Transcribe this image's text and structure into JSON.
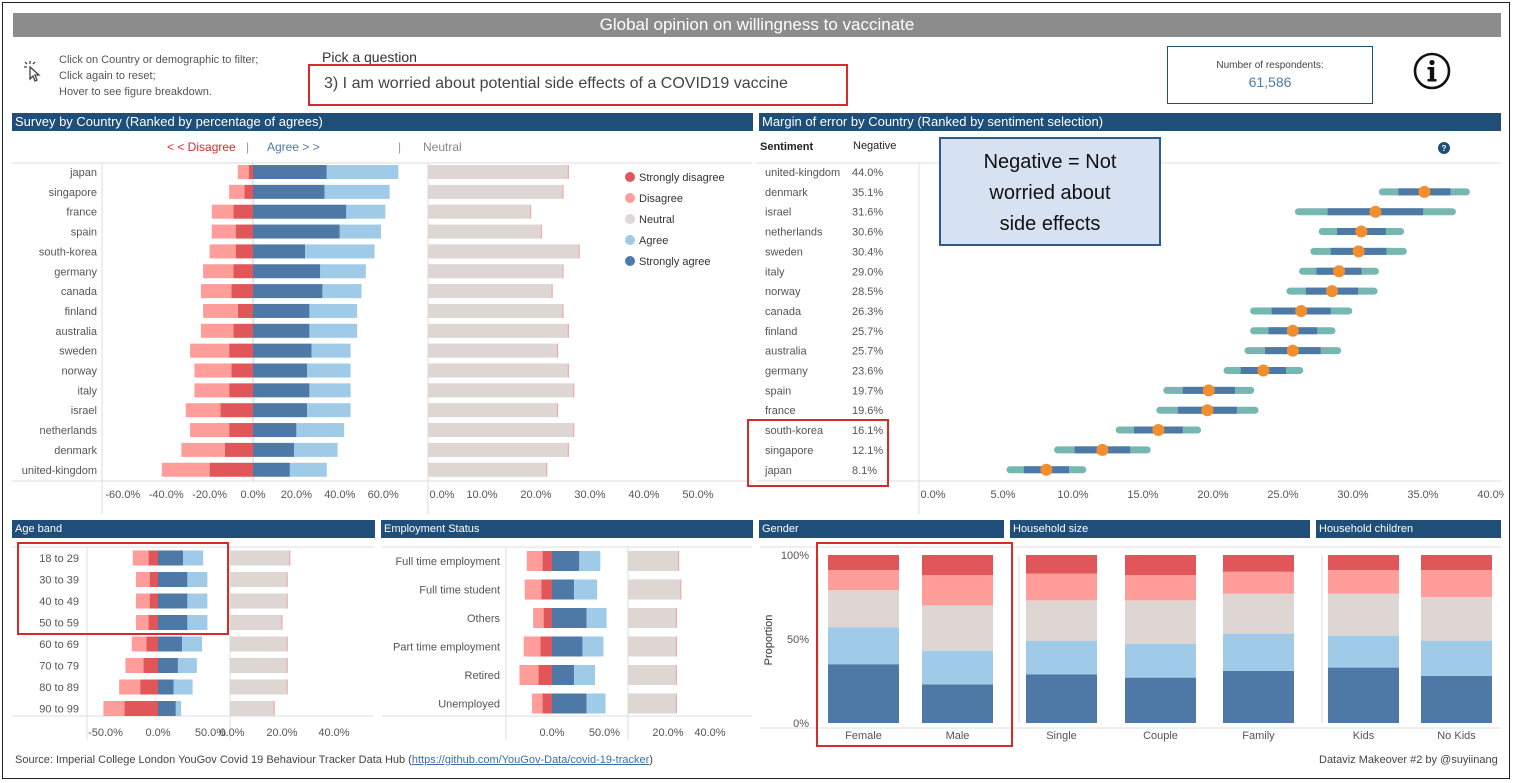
{
  "title": "Global opinion on willingness to vaccinate",
  "hints": [
    "Click on Country or demographic to filter;",
    "Click again to reset;",
    "Hover to see figure breakdown."
  ],
  "pick_label": "Pick a question",
  "question": "3) I am worried about potential side effects of a COVID19 vaccine",
  "respondents": {
    "label": "Number of respondents:",
    "value": "61,586"
  },
  "colors": {
    "strongly_disagree": "#e15759",
    "disagree": "#ff9d9a",
    "neutral": "#ddd6d3",
    "agree": "#a0cbe8",
    "strongly_agree": "#4e79a7",
    "header": "#1f4e79",
    "dot": "#f28e2b",
    "ci_outer": "#76b7b2"
  },
  "legend": [
    "Strongly disagree",
    "Disagree",
    "Neutral",
    "Agree",
    "Strongly agree"
  ],
  "survey": {
    "header": "Survey by Country (Ranked by percentage of agrees)",
    "disagree_label": "< < Disagree",
    "agree_label": "Agree > >",
    "neutral_label": "Neutral"
  },
  "margin": {
    "header": "Margin of error  by Country (Ranked by sentiment selection)",
    "sentiment_label": "Sentiment",
    "sentiment_value": "Negative",
    "annotation": [
      "Negative = Not",
      "worried about",
      "side effects"
    ]
  },
  "sections": {
    "age": "Age band",
    "employment": "Employment Status",
    "gender": "Gender",
    "household_size": "Household size",
    "household_children": "Household children"
  },
  "chart_data": [
    {
      "type": "bar",
      "name": "survey-by-country",
      "categories": [
        "japan",
        "singapore",
        "france",
        "spain",
        "south-korea",
        "germany",
        "canada",
        "finland",
        "australia",
        "sweden",
        "norway",
        "italy",
        "israel",
        "netherlands",
        "denmark",
        "united-kingdom"
      ],
      "series": [
        {
          "name": "Strongly disagree",
          "values": [
            -2,
            -4,
            -9,
            -8,
            -8,
            -9,
            -10,
            -7,
            -9,
            -11,
            -10,
            -11,
            -15,
            -11,
            -13,
            -20
          ]
        },
        {
          "name": "Disagree",
          "values": [
            -5,
            -7,
            -10,
            -11,
            -12,
            -14,
            -14,
            -16,
            -15,
            -18,
            -17,
            -16,
            -16,
            -18,
            -20,
            -22
          ]
        },
        {
          "name": "Strongly agree",
          "values": [
            34,
            33,
            43,
            40,
            24,
            31,
            32,
            26,
            26,
            27,
            25,
            26,
            25,
            20,
            19,
            17
          ]
        },
        {
          "name": "Agree",
          "values": [
            33,
            30,
            18,
            19,
            32,
            21,
            18,
            22,
            22,
            18,
            20,
            19,
            20,
            22,
            20,
            17
          ]
        },
        {
          "name": "Neutral",
          "values": [
            26,
            25,
            19,
            21,
            28,
            25,
            23,
            25,
            26,
            24,
            26,
            27,
            24,
            27,
            26,
            22
          ]
        }
      ],
      "xticks": [
        "-60.0%",
        "-40.0%",
        "-20.0%",
        "0.0%",
        "20.0%",
        "40.0%",
        "60.0%"
      ],
      "neutral_ticks": [
        "0.0%",
        "10.0%",
        "20.0%",
        "30.0%",
        "40.0%",
        "50.0%"
      ],
      "xlim": [
        -70,
        70
      ],
      "neutral_xlim": [
        0,
        52
      ]
    },
    {
      "type": "scatter",
      "name": "margin-of-error",
      "categories": [
        "united-kingdom",
        "denmark",
        "israel",
        "netherlands",
        "sweden",
        "italy",
        "norway",
        "canada",
        "finland",
        "australia",
        "germany",
        "spain",
        "france",
        "south-korea",
        "singapore",
        "japan"
      ],
      "labels": [
        "44.0%",
        "35.1%",
        "31.6%",
        "30.6%",
        "30.4%",
        "29.0%",
        "28.5%",
        "26.3%",
        "25.7%",
        "25.7%",
        "23.6%",
        "19.7%",
        "19.6%",
        "16.1%",
        "12.1%",
        "8.1%"
      ],
      "values": [
        44.0,
        35.1,
        31.6,
        30.6,
        30.4,
        29.0,
        28.5,
        26.3,
        25.7,
        25.7,
        23.6,
        19.7,
        19.6,
        16.1,
        12.1,
        8.1
      ],
      "xticks": [
        "0.0%",
        "5.0%",
        "10.0%",
        "15.0%",
        "20.0%",
        "25.0%",
        "30.0%",
        "35.0%",
        "40.0%",
        "45.0%"
      ],
      "xlim": [
        0,
        47
      ]
    },
    {
      "type": "bar",
      "name": "age-band",
      "categories": [
        "18 to 29",
        "30 to 39",
        "40 to 49",
        "50 to 59",
        "60 to 69",
        "70 to 79",
        "80 to 89",
        "90 to 99"
      ],
      "series": [
        {
          "name": "Strongly disagree",
          "values": [
            -9,
            -8,
            -8,
            -9,
            -11,
            -14,
            -17,
            -32
          ]
        },
        {
          "name": "Disagree",
          "values": [
            -15,
            -13,
            -13,
            -12,
            -14,
            -17,
            -20,
            -20
          ]
        },
        {
          "name": "Strongly agree",
          "values": [
            24,
            28,
            28,
            28,
            23,
            19,
            15,
            17
          ]
        },
        {
          "name": "Agree",
          "values": [
            19,
            19,
            19,
            19,
            19,
            18,
            18,
            5
          ]
        },
        {
          "name": "Neutral",
          "values": [
            23,
            22,
            22,
            20,
            22,
            22,
            22,
            17
          ]
        }
      ],
      "xticks": [
        "-50.0%",
        "0.0%",
        "50.0%"
      ],
      "neutral_ticks": [
        "0.0%",
        "20.0%",
        "40.0%"
      ]
    },
    {
      "type": "bar",
      "name": "employment-status",
      "categories": [
        "Full time employment",
        "Full time student",
        "Others",
        "Part time employment",
        "Retired",
        "Unemployed"
      ],
      "series": [
        {
          "name": "Strongly disagree",
          "values": [
            -9,
            -10,
            -8,
            -11,
            -13,
            -9
          ]
        },
        {
          "name": "Disagree",
          "values": [
            -15,
            -16,
            -10,
            -16,
            -18,
            -10
          ]
        },
        {
          "name": "Strongly agree",
          "values": [
            26,
            21,
            33,
            29,
            21,
            33
          ]
        },
        {
          "name": "Agree",
          "values": [
            20,
            22,
            19,
            20,
            20,
            18
          ]
        },
        {
          "name": "Neutral",
          "values": [
            23,
            24,
            22,
            22,
            22,
            22
          ]
        }
      ],
      "xticks": [
        "0.0%",
        "50.0%"
      ],
      "neutral_ticks": [
        "20.0%",
        "40.0%"
      ]
    },
    {
      "type": "bar",
      "name": "gender",
      "stacked": true,
      "categories": [
        "Female",
        "Male"
      ],
      "series": [
        {
          "name": "Strongly agree",
          "values": [
            35,
            23
          ]
        },
        {
          "name": "Agree",
          "values": [
            22,
            20
          ]
        },
        {
          "name": "Neutral",
          "values": [
            22,
            27
          ]
        },
        {
          "name": "Disagree",
          "values": [
            12,
            18
          ]
        },
        {
          "name": "Strongly disagree",
          "values": [
            9,
            12
          ]
        }
      ],
      "ylabel": "Proportion",
      "yticks": [
        "0%",
        "50%",
        "100%"
      ]
    },
    {
      "type": "bar",
      "name": "household-size",
      "stacked": true,
      "categories": [
        "Single",
        "Couple",
        "Family"
      ],
      "series": [
        {
          "name": "Strongly agree",
          "values": [
            29,
            27,
            31
          ]
        },
        {
          "name": "Agree",
          "values": [
            20,
            20,
            22
          ]
        },
        {
          "name": "Neutral",
          "values": [
            24,
            26,
            24
          ]
        },
        {
          "name": "Disagree",
          "values": [
            16,
            15,
            13
          ]
        },
        {
          "name": "Strongly disagree",
          "values": [
            11,
            12,
            10
          ]
        }
      ]
    },
    {
      "type": "bar",
      "name": "household-children",
      "stacked": true,
      "categories": [
        "Kids",
        "No Kids"
      ],
      "series": [
        {
          "name": "Strongly agree",
          "values": [
            33,
            28
          ]
        },
        {
          "name": "Agree",
          "values": [
            19,
            21
          ]
        },
        {
          "name": "Neutral",
          "values": [
            25,
            26
          ]
        },
        {
          "name": "Disagree",
          "values": [
            14,
            16
          ]
        },
        {
          "name": "Strongly disagree",
          "values": [
            9,
            9
          ]
        }
      ]
    }
  ],
  "footer": {
    "source_prefix": "Source: Imperial College London YouGov Covid 19 Behaviour Tracker Data Hub (",
    "source_link": "https://github.com/YouGov-Data/covid-19-tracker",
    "source_suffix": ")",
    "credit": "Dataviz Makeover #2 by @suyiinang"
  }
}
